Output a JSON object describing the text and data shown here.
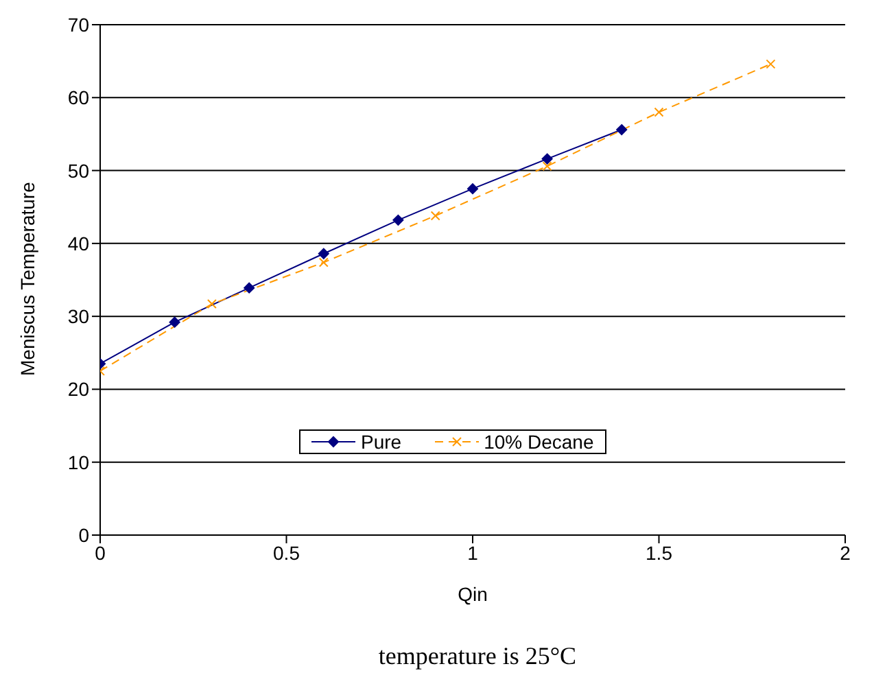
{
  "chart_data": {
    "type": "line",
    "xlabel": "Qin",
    "ylabel": "Meniscus Temperature",
    "annotations": [
      "temperature is 25°C"
    ],
    "xlim": [
      0,
      2
    ],
    "xticks": [
      0,
      0.5,
      1,
      1.5,
      2
    ],
    "ylim": [
      0,
      70
    ],
    "yticks": [
      0,
      10,
      20,
      30,
      40,
      50,
      60,
      70
    ],
    "grid": "y",
    "legend": "bottom",
    "series": [
      {
        "name": "Pure",
        "color": "#000080",
        "marker": "diamond",
        "line_style": "solid",
        "x": [
          0,
          0.2,
          0.4,
          0.6,
          0.8,
          1.0,
          1.2,
          1.4
        ],
        "values": [
          23.5,
          29.2,
          33.9,
          38.6,
          43.2,
          47.5,
          51.6,
          55.6
        ]
      },
      {
        "name": "10% Decane",
        "color": "#ff9900",
        "marker": "cross",
        "line_style": "dashed",
        "x": [
          0,
          0.3,
          0.6,
          0.9,
          1.2,
          1.5,
          1.8
        ],
        "values": [
          22.5,
          31.7,
          37.4,
          43.8,
          50.6,
          58.0,
          64.6
        ]
      }
    ]
  }
}
